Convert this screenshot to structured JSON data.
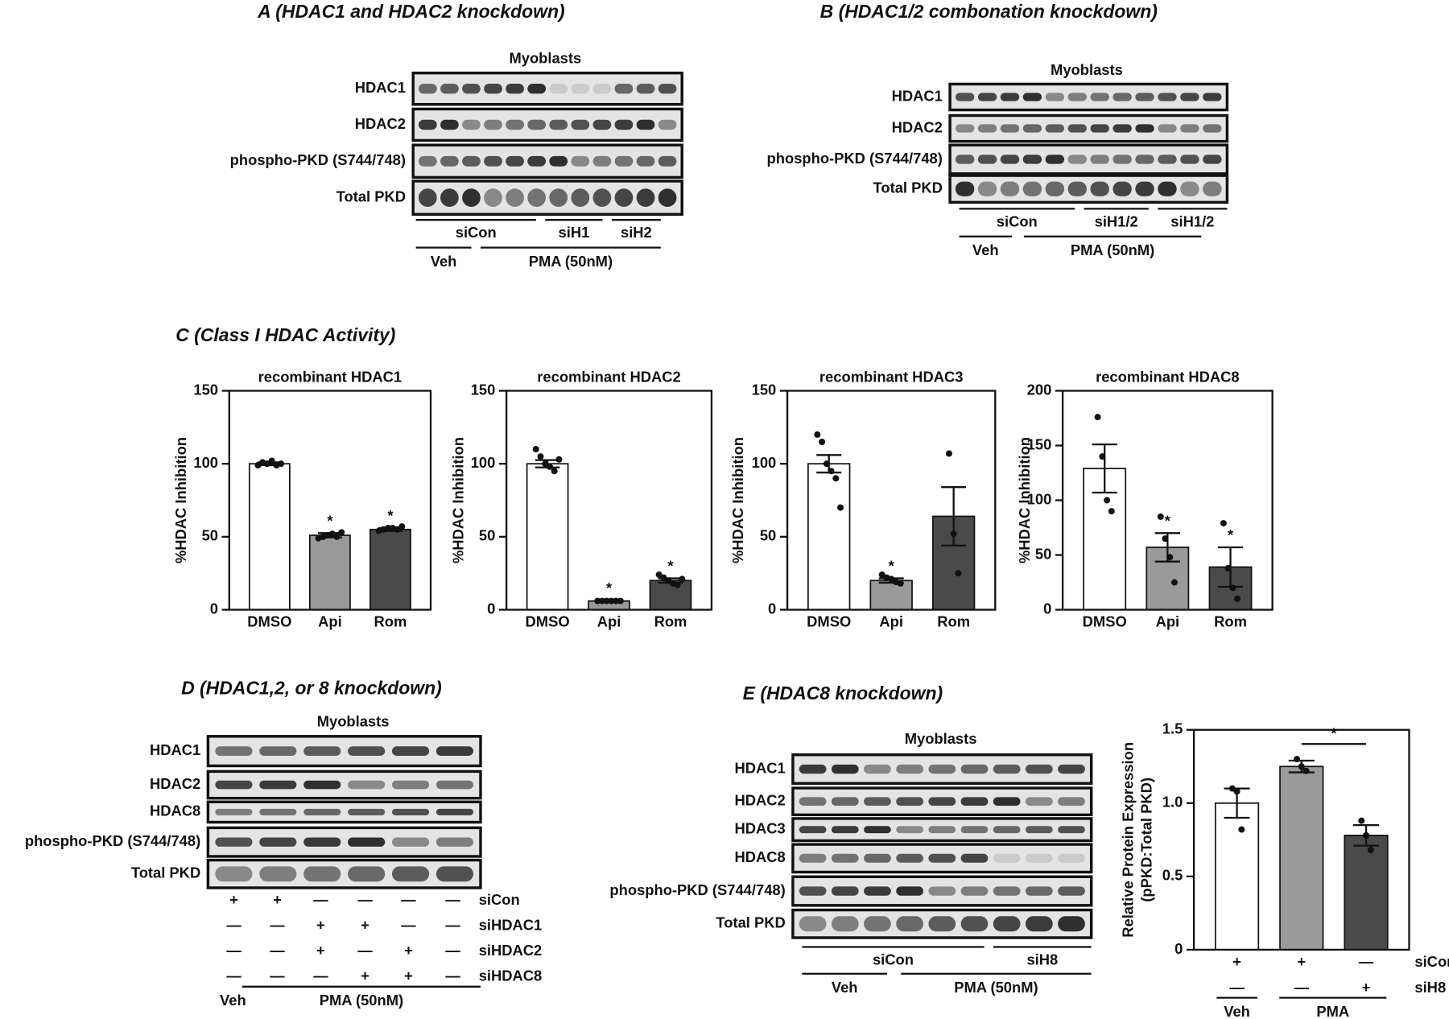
{
  "panel_a": {
    "title": "A (HDAC1 and HDAC2 knockdown)",
    "cell": "Myoblasts",
    "rows": [
      "HDAC1",
      "HDAC2",
      "phospho-PKD (S744/748)",
      "Total PKD"
    ],
    "groups": [
      "siCon",
      "siH1",
      "siH2"
    ],
    "treatments": [
      "Veh",
      "PMA (50nM)"
    ]
  },
  "panel_b": {
    "title": "B (HDAC1/2 combonation knockdown)",
    "cell": "Myoblasts",
    "rows": [
      "HDAC1",
      "HDAC2",
      "phospho-PKD (S744/748)",
      "Total PKD"
    ],
    "groups": [
      "siCon",
      "siH1/2",
      "siH1/2"
    ],
    "treatments": [
      "Veh",
      "PMA (50nM)"
    ]
  },
  "panel_c": {
    "title": "C (Class I HDAC Activity)"
  },
  "panel_d": {
    "title": "D (HDAC1,2, or 8 knockdown)",
    "cell": "Myoblasts",
    "rows": [
      "HDAC1",
      "HDAC2",
      "HDAC8",
      "phospho-PKD (S744/748)",
      "Total PKD"
    ],
    "conditions": [
      {
        "name": "siCon",
        "signs": [
          "+",
          "+",
          "—",
          "—",
          "—",
          "—"
        ]
      },
      {
        "name": "siHDAC1",
        "signs": [
          "—",
          "—",
          "+",
          "+",
          "—",
          "—"
        ]
      },
      {
        "name": "siHDAC2",
        "signs": [
          "—",
          "—",
          "+",
          "—",
          "+",
          "—"
        ]
      },
      {
        "name": "siHDAC8",
        "signs": [
          "—",
          "—",
          "—",
          "+",
          "+",
          "—"
        ]
      }
    ],
    "treatments": [
      "Veh",
      "PMA (50nM)"
    ]
  },
  "panel_e": {
    "title": "E (HDAC8 knockdown)",
    "cell": "Myoblasts",
    "rows": [
      "HDAC1",
      "HDAC2",
      "HDAC3",
      "HDAC8",
      "phospho-PKD (S744/748)",
      "Total PKD"
    ],
    "groups": [
      "siCon",
      "siH8"
    ],
    "treatments": [
      "Veh",
      "PMA (50nM)"
    ],
    "conditions": [
      {
        "name": "siCon",
        "signs": [
          "+",
          "+",
          "—"
        ]
      },
      {
        "name": "siH8",
        "signs": [
          "—",
          "—",
          "+"
        ]
      }
    ],
    "chart_treatments": [
      "Veh",
      "PMA"
    ]
  },
  "chart_data": [
    {
      "type": "bar",
      "title": "recombinant HDAC1",
      "y_label": "%HDAC Inhibition",
      "categories": [
        "DMSO",
        "Api",
        "Rom"
      ],
      "values": [
        100,
        51,
        55
      ],
      "errors": [
        1,
        1.5,
        1
      ],
      "points": [
        [
          99,
          101,
          100,
          102,
          99,
          100
        ],
        [
          49,
          50,
          51,
          52,
          50,
          53
        ],
        [
          54,
          55,
          56,
          56,
          55,
          57
        ]
      ],
      "colors": [
        "#ffffff",
        "#9a9a9a",
        "#4a4a4a"
      ],
      "annotations": [
        {
          "category": 1,
          "label": "*"
        },
        {
          "category": 2,
          "label": "*"
        }
      ],
      "ylim": [
        0,
        150
      ],
      "yticks": [
        0,
        50,
        100,
        150
      ]
    },
    {
      "type": "bar",
      "title": "recombinant HDAC2",
      "y_label": "%HDAC Inhibition",
      "categories": [
        "DMSO",
        "Api",
        "Rom"
      ],
      "values": [
        100,
        6,
        20
      ],
      "errors": [
        2.5,
        0.5,
        1.5
      ],
      "points": [
        [
          110,
          105,
          100,
          98,
          95,
          103
        ],
        [
          6,
          6,
          6,
          6,
          6,
          6
        ],
        [
          24,
          22,
          20,
          18,
          17,
          21
        ]
      ],
      "colors": [
        "#ffffff",
        "#9a9a9a",
        "#4a4a4a"
      ],
      "annotations": [
        {
          "category": 1,
          "label": "*"
        },
        {
          "category": 2,
          "label": "*"
        }
      ],
      "ylim": [
        0,
        150
      ],
      "yticks": [
        0,
        50,
        100,
        150
      ]
    },
    {
      "type": "bar",
      "title": "recombinant HDAC3",
      "y_label": "%HDAC Inhibition",
      "categories": [
        "DMSO",
        "Api",
        "Rom"
      ],
      "values": [
        100,
        20,
        64
      ],
      "errors": [
        6,
        1.5,
        20
      ],
      "points": [
        [
          120,
          115,
          100,
          95,
          90,
          70
        ],
        [
          24,
          22,
          21,
          19,
          18
        ],
        [
          107,
          52,
          25
        ]
      ],
      "colors": [
        "#ffffff",
        "#9a9a9a",
        "#4a4a4a"
      ],
      "annotations": [
        {
          "category": 1,
          "label": "*"
        }
      ],
      "ylim": [
        0,
        150
      ],
      "yticks": [
        0,
        50,
        100,
        150
      ]
    },
    {
      "type": "bar",
      "title": "recombinant HDAC8",
      "y_label": "%HDAC Inhibition",
      "categories": [
        "DMSO",
        "Api",
        "Rom"
      ],
      "values": [
        129,
        57,
        39
      ],
      "errors": [
        22,
        13,
        18
      ],
      "points": [
        [
          176,
          140,
          100,
          90
        ],
        [
          85,
          65,
          48,
          25
        ],
        [
          79,
          38,
          20,
          10
        ]
      ],
      "colors": [
        "#ffffff",
        "#9a9a9a",
        "#4a4a4a"
      ],
      "annotations": [
        {
          "category": 1,
          "label": "*"
        },
        {
          "category": 2,
          "label": "*"
        }
      ],
      "ylim": [
        0,
        200
      ],
      "yticks": [
        0,
        50,
        100,
        150,
        200
      ]
    },
    {
      "type": "bar",
      "y_label": [
        "Relative Protein Expression",
        "(pPKD:Total PKD)"
      ],
      "categories": [
        null,
        null,
        null
      ],
      "values": [
        1.0,
        1.25,
        0.78
      ],
      "errors": [
        0.1,
        0.04,
        0.07
      ],
      "points": [
        [
          1.1,
          1.08,
          0.82
        ],
        [
          1.3,
          1.25,
          1.22
        ],
        [
          0.88,
          0.78,
          0.68
        ]
      ],
      "colors": [
        "#ffffff",
        "#9a9a9a",
        "#4a4a4a"
      ],
      "brackets": [
        {
          "from": 1,
          "to": 2,
          "label": "*"
        }
      ],
      "ylim": [
        0,
        1.5
      ],
      "yticks": [
        0,
        0.5,
        {
          "value": 1,
          "label": "1.0"
        },
        1.5
      ]
    }
  ]
}
